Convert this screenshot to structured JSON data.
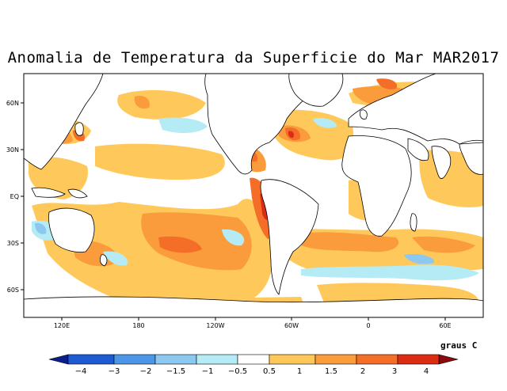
{
  "title": "Anomalia de Temperatura da Superficie do Mar MAR2017",
  "units_label": "graus C",
  "axes": {
    "lon_labels": [
      "120E",
      "180",
      "120W",
      "60W",
      "0",
      "60E"
    ],
    "lat_labels": [
      "60N",
      "30N",
      "EQ",
      "30S",
      "60S"
    ]
  },
  "colorbar": {
    "labels": [
      "−4",
      "−3",
      "−2",
      "−1.5",
      "−1",
      "−0.5",
      "0.5",
      "1",
      "1.5",
      "2",
      "3",
      "4"
    ],
    "colors": [
      "#0a1e8c",
      "#1e5ad2",
      "#4b96e6",
      "#8cc8f0",
      "#b4ebf5",
      "#ffffff",
      "#ffc85a",
      "#fa9b3c",
      "#f56e28",
      "#dc2d14",
      "#b4140f",
      "#8c0a0a"
    ]
  }
}
